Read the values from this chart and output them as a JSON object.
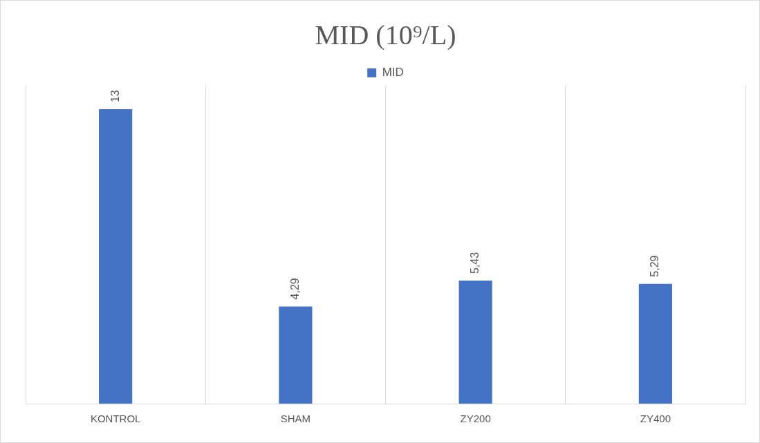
{
  "chart_data": {
    "type": "bar",
    "title": "MID (10⁹/L)",
    "categories": [
      "KONTROL",
      "SHAM",
      "ZY200",
      "ZY400"
    ],
    "series": [
      {
        "name": "MID",
        "color": "#4472c4",
        "values": [
          13,
          4.29,
          5.43,
          5.29
        ],
        "value_labels": [
          "13",
          "4,29",
          "5,43",
          "5,29"
        ]
      }
    ],
    "tick_labels": "x",
    "grid": "x",
    "legend": "top"
  }
}
